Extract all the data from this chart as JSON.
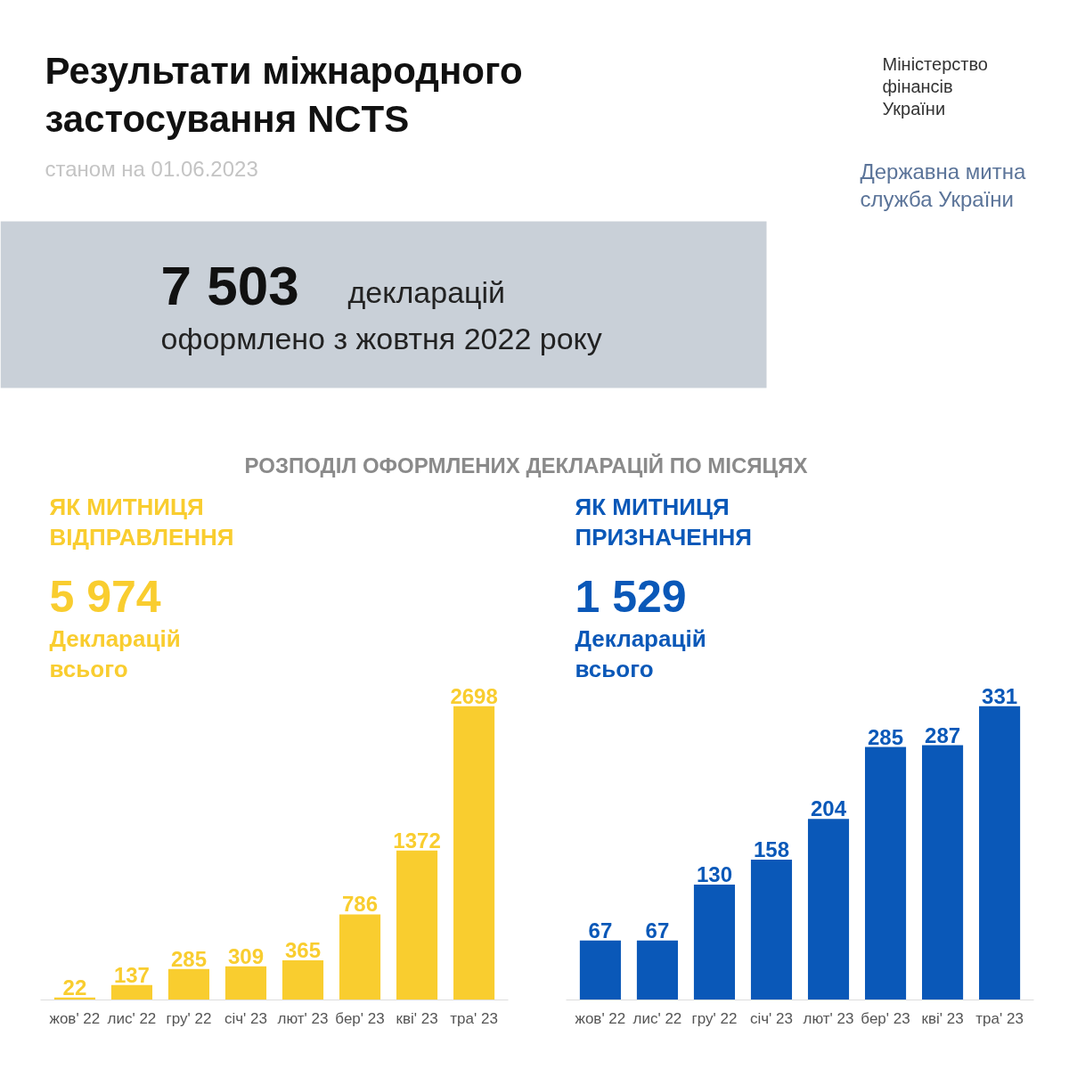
{
  "chart_data": [
    {
      "type": "other",
      "title": "Результати міжнародного застосування NCTS",
      "subtitle": "станом на 01.06.2023",
      "annotations": [
        "Міністерство фінансів України",
        "Державна митна служба України",
        "7 503",
        "декларацій",
        "оформлено з жовтня 2022 року",
        "РОЗПОДІЛ ОФОРМЛЕНИХ ДЕКЛАРАЦІЙ ПО МІСЯЦЯХ"
      ]
    },
    {
      "type": "bar",
      "title": "ЯК МИТНИЦЯ ВІДПРАВЛЕННЯ",
      "subtitle": "5 974",
      "annotations": [
        "Декларацій всього"
      ],
      "categories": [
        "жов' 22",
        "лис' 22",
        "гру' 22",
        "січ' 23",
        "лют' 23",
        "бер' 23",
        "кві' 23",
        "тра' 23"
      ],
      "series": [
        {
          "color": "#f9cd2f",
          "values": [
            22,
            137,
            285,
            309,
            365,
            786,
            1372,
            2698
          ]
        }
      ],
      "data_labels": true
    },
    {
      "type": "bar",
      "title": "ЯК МИТНИЦЯ ПРИЗНАЧЕННЯ",
      "subtitle": "1 529",
      "annotations": [
        "Декларацій всього"
      ],
      "categories": [
        "жов' 22",
        "лис' 22",
        "гру' 22",
        "січ' 23",
        "лют' 23",
        "бер' 23",
        "кві' 23",
        "тра' 23"
      ],
      "series": [
        {
          "color": "#0a58b8",
          "values": [
            67,
            67,
            130,
            158,
            204,
            285,
            287,
            331
          ]
        }
      ],
      "data_labels": true
    }
  ]
}
